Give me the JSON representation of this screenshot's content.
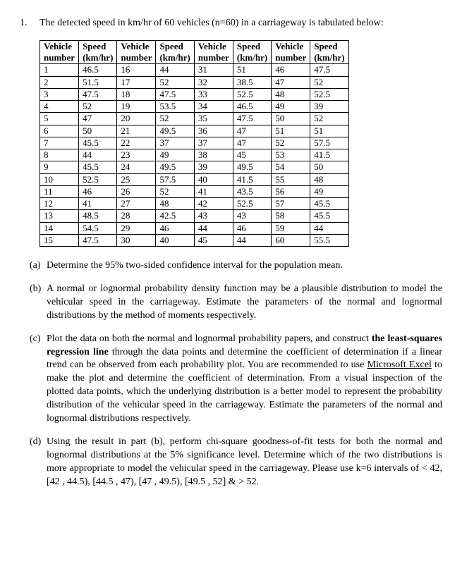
{
  "question": {
    "number": "1.",
    "prompt": "The detected speed in km/hr of 60 vehicles (n=60) in a carriageway is tabulated below:"
  },
  "table": {
    "col_pairs": 4,
    "header_vehicle": "Vehicle number",
    "header_speed": "Speed (km/hr)",
    "rows": [
      [
        "1",
        "46.5",
        "16",
        "44",
        "31",
        "51",
        "46",
        "47.5"
      ],
      [
        "2",
        "51.5",
        "17",
        "52",
        "32",
        "38.5",
        "47",
        "52"
      ],
      [
        "3",
        "47.5",
        "18",
        "47.5",
        "33",
        "52.5",
        "48",
        "52.5"
      ],
      [
        "4",
        "52",
        "19",
        "53.5",
        "34",
        "46.5",
        "49",
        "39"
      ],
      [
        "5",
        "47",
        "20",
        "52",
        "35",
        "47.5",
        "50",
        "52"
      ],
      [
        "6",
        "50",
        "21",
        "49.5",
        "36",
        "47",
        "51",
        "51"
      ],
      [
        "7",
        "45.5",
        "22",
        "37",
        "37",
        "47",
        "52",
        "57.5"
      ],
      [
        "8",
        "44",
        "23",
        "49",
        "38",
        "45",
        "53",
        "41.5"
      ],
      [
        "9",
        "45.5",
        "24",
        "49.5",
        "39",
        "49.5",
        "54",
        "50"
      ],
      [
        "10",
        "52.5",
        "25",
        "57.5",
        "40",
        "41.5",
        "55",
        "48"
      ],
      [
        "11",
        "46",
        "26",
        "52",
        "41",
        "43.5",
        "56",
        "49"
      ],
      [
        "12",
        "41",
        "27",
        "48",
        "42",
        "52.5",
        "57",
        "45.5"
      ],
      [
        "13",
        "48.5",
        "28",
        "42.5",
        "43",
        "43",
        "58",
        "45.5"
      ],
      [
        "14",
        "54.5",
        "29",
        "46",
        "44",
        "46",
        "59",
        "44"
      ],
      [
        "15",
        "47.5",
        "30",
        "40",
        "45",
        "44",
        "60",
        "55.5"
      ]
    ]
  },
  "parts": {
    "a": {
      "label": "(a)",
      "text": "Determine the 95% two-sided confidence interval for the population mean."
    },
    "b": {
      "label": "(b)",
      "text": "A normal or lognormal probability density function may be a plausible distribution to model the vehicular speed in the carriageway. Estimate the parameters of the normal and lognormal distributions by the method of moments respectively."
    },
    "c": {
      "label": "(c)",
      "pre": "Plot the data on both the normal and lognormal probability papers, and construct ",
      "bold1": "the least-squares regression line",
      "mid1": " through the data points and determine the coefficient of determination if a linear trend can be observed from each probability plot. You are recommended to use ",
      "underline": "Microsoft Excel",
      "mid2": " to make the plot and determine the coefficient of determination. From a visual inspection of the plotted data points, which the underlying distribution is a better model to represent the probability distribution of the vehicular speed in the carriageway. Estimate the parameters of the normal and lognormal distributions respectively."
    },
    "d": {
      "label": "(d)",
      "text": "Using the result in part (b), perform chi-square goodness-of-fit tests for both the normal and lognormal distributions at the 5% significance level. Determine which of the two distributions is more appropriate to model the vehicular speed in the carriageway. Please use k=6 intervals of < 42, [42 , 44.5), [44.5 , 47), [47 , 49.5), [49.5 , 52] & > 52."
    }
  }
}
